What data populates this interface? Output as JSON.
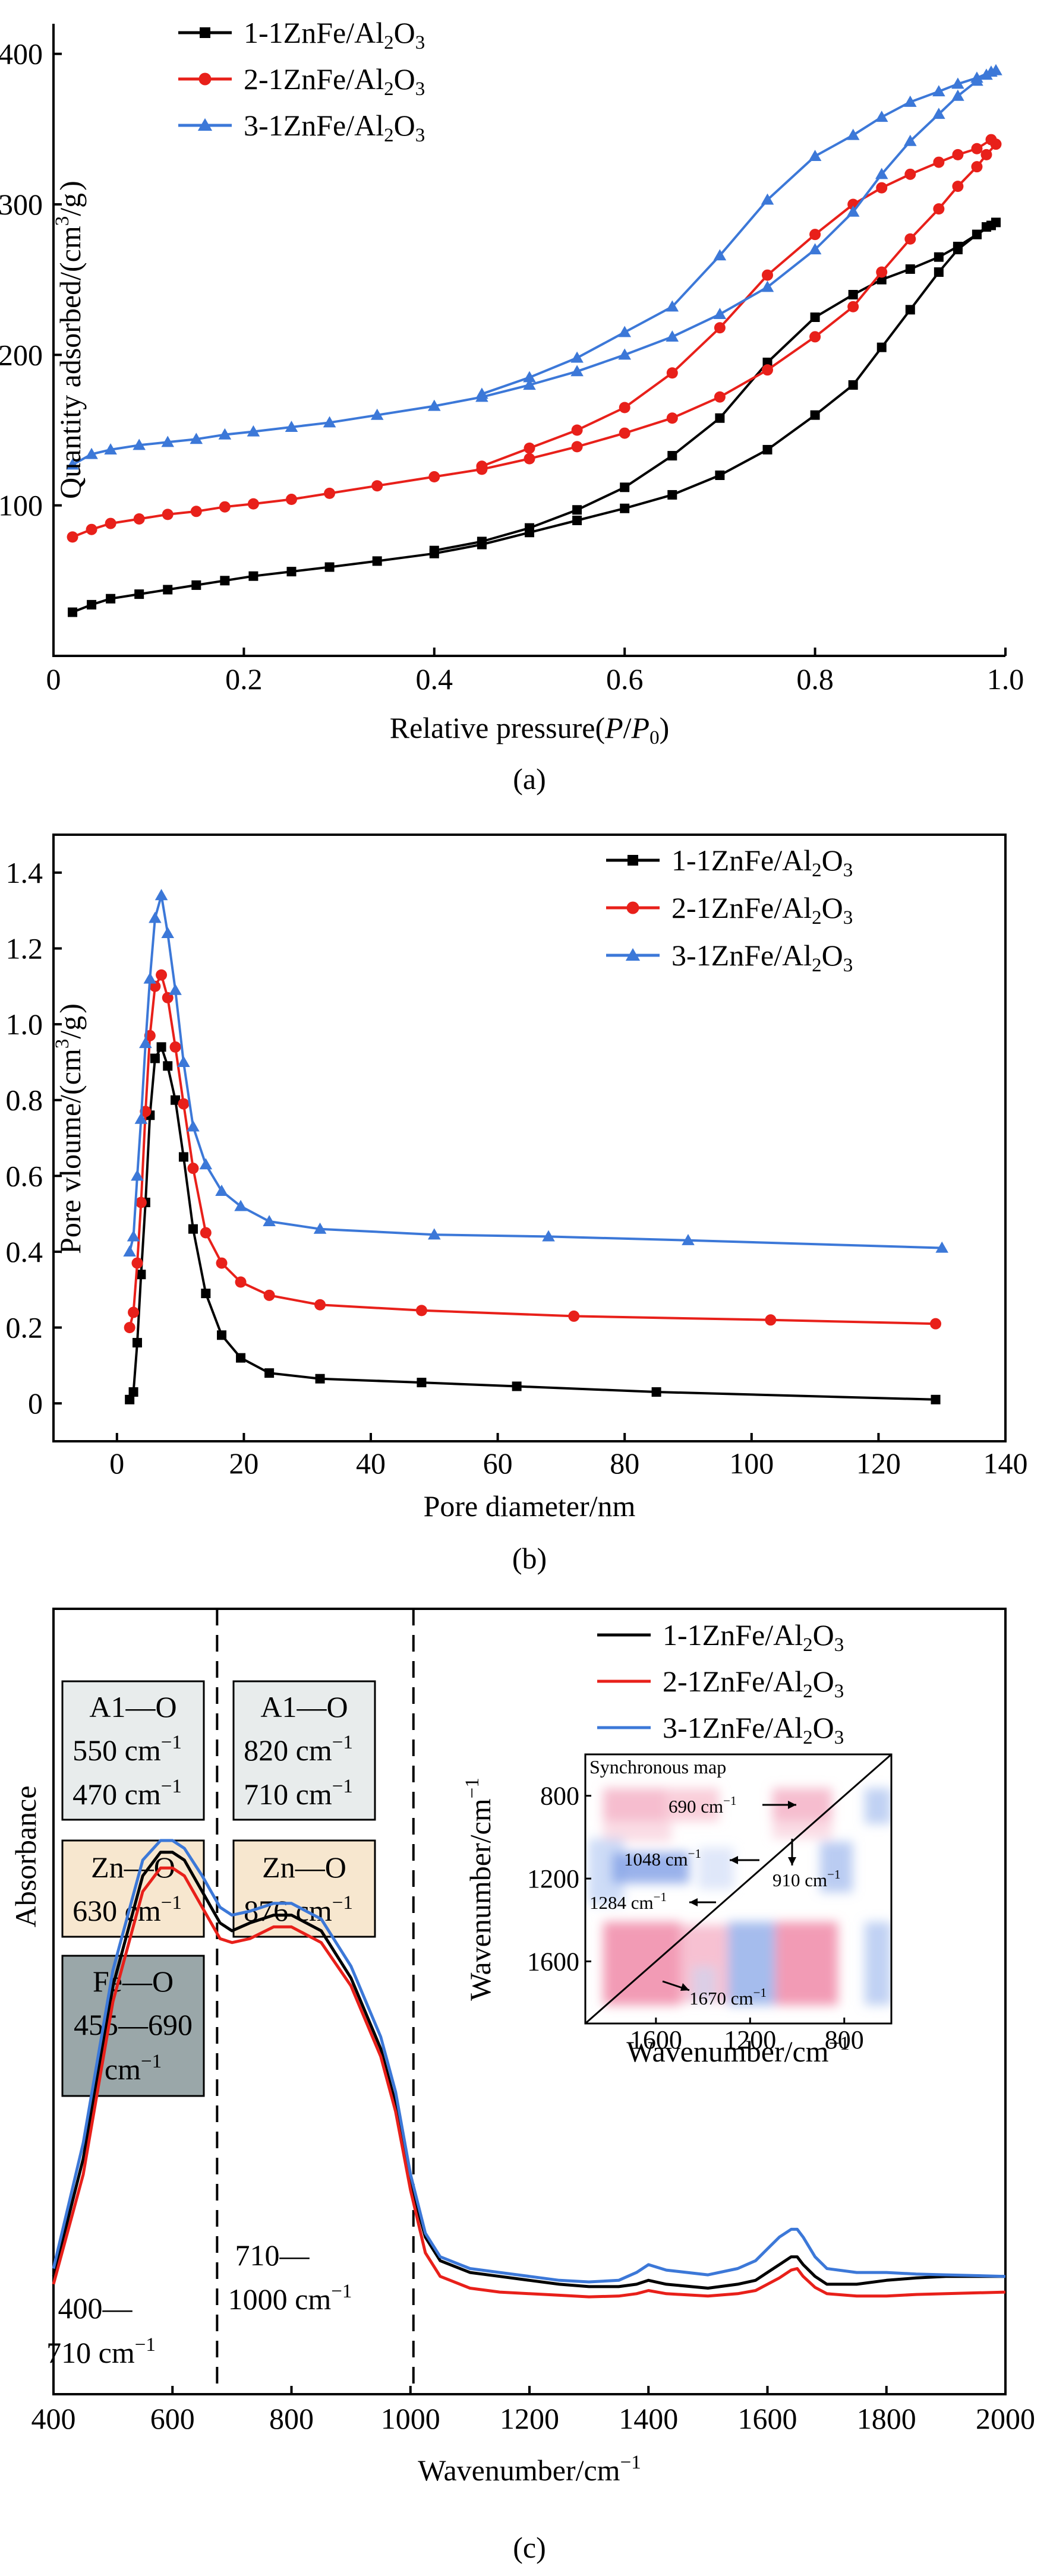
{
  "colors": {
    "s1": "#000000",
    "s2": "#e8201a",
    "s3": "#3c78d8",
    "al_box": "#e8ecec",
    "zn_box": "#f7e7cf",
    "fe_box": "#9aa7a9"
  },
  "chart_data": [
    {
      "type": "line",
      "panel_label": "(a)",
      "xlabel_parts": [
        "Relative pressure(",
        "P",
        "/",
        "P",
        "0",
        ")"
      ],
      "ylabel_parts": [
        "Quantity adsorbed/(cm",
        "3",
        "/g",
        ")"
      ],
      "xlim": [
        0,
        1.0
      ],
      "ylim": [
        0,
        420
      ],
      "xticks": [
        0,
        0.2,
        0.4,
        0.6,
        0.8,
        1.0
      ],
      "xtick_labels": [
        "0",
        "0.2",
        "0.4",
        "0.6",
        "0.8",
        "1.0"
      ],
      "yticks": [
        100,
        200,
        300,
        400
      ],
      "ytick_labels": [
        "100",
        "200",
        "300",
        "400"
      ],
      "legend_position": "top-left",
      "series": [
        {
          "name": "1-1ZnFe/Al2O3",
          "legend_parts": [
            "1-1ZnFe/Al",
            "2",
            "O",
            "3"
          ],
          "marker": "square",
          "color_key": "s1",
          "x": [
            0.02,
            0.04,
            0.06,
            0.09,
            0.12,
            0.15,
            0.18,
            0.21,
            0.25,
            0.29,
            0.34,
            0.4,
            0.45,
            0.5,
            0.55,
            0.6,
            0.65,
            0.7,
            0.75,
            0.8,
            0.84,
            0.87,
            0.9,
            0.93,
            0.95,
            0.97,
            0.98,
            0.99,
            0.985,
            0.97,
            0.95,
            0.93,
            0.9,
            0.87,
            0.84,
            0.8,
            0.75,
            0.7,
            0.65,
            0.6,
            0.55,
            0.5,
            0.45,
            0.4
          ],
          "y": [
            29,
            34,
            38,
            41,
            44,
            47,
            50,
            53,
            56,
            59,
            63,
            68,
            74,
            82,
            90,
            98,
            107,
            120,
            137,
            160,
            180,
            205,
            230,
            255,
            270,
            280,
            285,
            288,
            286,
            280,
            272,
            265,
            257,
            250,
            240,
            225,
            195,
            158,
            133,
            112,
            97,
            85,
            76,
            70
          ]
        },
        {
          "name": "2-1ZnFe/Al2O3",
          "legend_parts": [
            "2-1ZnFe/Al",
            "2",
            "O",
            "3"
          ],
          "marker": "circle",
          "color_key": "s2",
          "x": [
            0.02,
            0.04,
            0.06,
            0.09,
            0.12,
            0.15,
            0.18,
            0.21,
            0.25,
            0.29,
            0.34,
            0.4,
            0.45,
            0.5,
            0.55,
            0.6,
            0.65,
            0.7,
            0.75,
            0.8,
            0.84,
            0.87,
            0.9,
            0.93,
            0.95,
            0.97,
            0.98,
            0.99,
            0.985,
            0.97,
            0.95,
            0.93,
            0.9,
            0.87,
            0.84,
            0.8,
            0.75,
            0.7,
            0.65,
            0.6,
            0.55,
            0.5,
            0.45
          ],
          "y": [
            79,
            84,
            88,
            91,
            94,
            96,
            99,
            101,
            104,
            108,
            113,
            119,
            124,
            131,
            139,
            148,
            158,
            172,
            190,
            212,
            232,
            255,
            277,
            297,
            312,
            325,
            333,
            340,
            343,
            337,
            333,
            328,
            320,
            311,
            300,
            280,
            253,
            218,
            188,
            165,
            150,
            138,
            126
          ]
        },
        {
          "name": "3-1ZnFe/Al2O3",
          "legend_parts": [
            "3-1ZnFe/Al",
            "2",
            "O",
            "3"
          ],
          "marker": "triangle",
          "color_key": "s3",
          "x": [
            0.02,
            0.04,
            0.06,
            0.09,
            0.12,
            0.15,
            0.18,
            0.21,
            0.25,
            0.29,
            0.34,
            0.4,
            0.45,
            0.5,
            0.55,
            0.6,
            0.65,
            0.7,
            0.75,
            0.8,
            0.84,
            0.87,
            0.9,
            0.93,
            0.95,
            0.97,
            0.98,
            0.99,
            0.985,
            0.97,
            0.95,
            0.93,
            0.9,
            0.87,
            0.84,
            0.8,
            0.75,
            0.7,
            0.65,
            0.6,
            0.55,
            0.5,
            0.45
          ],
          "y": [
            127,
            134,
            137,
            140,
            142,
            144,
            147,
            149,
            152,
            155,
            160,
            166,
            172,
            180,
            189,
            200,
            212,
            227,
            245,
            270,
            295,
            320,
            342,
            360,
            372,
            382,
            386,
            389,
            388,
            384,
            380,
            375,
            368,
            358,
            346,
            332,
            303,
            266,
            232,
            215,
            198,
            185,
            174
          ]
        }
      ]
    },
    {
      "type": "line",
      "panel_label": "(b)",
      "xlabel": "Pore diameter/nm",
      "ylabel_parts": [
        "Pore vloume/(cm",
        "3",
        "/g",
        ")"
      ],
      "xlim": [
        -10,
        140
      ],
      "ylim": [
        -0.1,
        1.5
      ],
      "xticks": [
        0,
        20,
        40,
        60,
        80,
        100,
        120,
        140
      ],
      "xtick_labels": [
        "0",
        "20",
        "40",
        "60",
        "80",
        "100",
        "120",
        "140"
      ],
      "yticks": [
        0,
        0.2,
        0.4,
        0.6,
        0.8,
        1.0,
        1.2,
        1.4
      ],
      "ytick_labels": [
        "0",
        "0.2",
        "0.4",
        "0.6",
        "0.8",
        "1.0",
        "1.2",
        "1.4"
      ],
      "legend_position": "top-right",
      "series": [
        {
          "name": "1-1ZnFe/Al2O3",
          "legend_parts": [
            "1-1ZnFe/Al",
            "2",
            "O",
            "3"
          ],
          "marker": "square",
          "color_key": "s1",
          "x": [
            2,
            2.6,
            3.2,
            3.8,
            4.5,
            5.2,
            6,
            7,
            8,
            9.2,
            10.5,
            12,
            14,
            16.5,
            19.5,
            24,
            32,
            48,
            63,
            85,
            129
          ],
          "y": [
            0.01,
            0.03,
            0.16,
            0.34,
            0.53,
            0.76,
            0.91,
            0.94,
            0.89,
            0.8,
            0.65,
            0.46,
            0.29,
            0.18,
            0.12,
            0.08,
            0.065,
            0.055,
            0.045,
            0.03,
            0.01
          ]
        },
        {
          "name": "2-1ZnFe/Al2O3",
          "legend_parts": [
            "2-1ZnFe/Al",
            "2",
            "O",
            "3"
          ],
          "marker": "circle",
          "color_key": "s2",
          "x": [
            2,
            2.6,
            3.2,
            3.8,
            4.5,
            5.2,
            6,
            7,
            8,
            9.2,
            10.5,
            12,
            14,
            16.5,
            19.5,
            24,
            32,
            48,
            72,
            103,
            129
          ],
          "y": [
            0.2,
            0.24,
            0.37,
            0.53,
            0.77,
            0.97,
            1.1,
            1.13,
            1.07,
            0.94,
            0.79,
            0.62,
            0.45,
            0.37,
            0.32,
            0.285,
            0.26,
            0.245,
            0.23,
            0.22,
            0.21
          ]
        },
        {
          "name": "3-1ZnFe/Al2O3",
          "legend_parts": [
            "3-1ZnFe/Al",
            "2",
            "O",
            "3"
          ],
          "marker": "triangle",
          "color_key": "s3",
          "x": [
            2,
            2.6,
            3.2,
            3.8,
            4.5,
            5.2,
            6,
            7,
            8,
            9.2,
            10.5,
            12,
            14,
            16.5,
            19.5,
            24,
            32,
            50,
            68,
            90,
            130
          ],
          "y": [
            0.4,
            0.44,
            0.6,
            0.75,
            0.95,
            1.12,
            1.28,
            1.34,
            1.24,
            1.09,
            0.9,
            0.73,
            0.63,
            0.56,
            0.52,
            0.48,
            0.46,
            0.445,
            0.44,
            0.43,
            0.41
          ]
        }
      ]
    },
    {
      "type": "line",
      "panel_label": "(c)",
      "xlabel_parts": [
        "Wavenumber/cm",
        "−1"
      ],
      "ylabel": "Absorbance",
      "xlim": [
        400,
        2000
      ],
      "ylim": [
        0,
        1
      ],
      "xticks": [
        400,
        600,
        800,
        1000,
        1200,
        1400,
        1600,
        1800,
        2000
      ],
      "xtick_labels": [
        "400",
        "600",
        "800",
        "1000",
        "1200",
        "1400",
        "1600",
        "1800",
        "2000"
      ],
      "region_dividers": [
        675,
        1005
      ],
      "legend_position": "top-right",
      "series": [
        {
          "name": "1-1ZnFe/Al2O3",
          "legend_parts": [
            "1-1ZnFe/Al",
            "2",
            "O",
            "3"
          ],
          "color_key": "s1",
          "x": [
            400,
            450,
            500,
            550,
            580,
            600,
            620,
            650,
            680,
            700,
            730,
            770,
            800,
            850,
            900,
            950,
            975,
            1000,
            1025,
            1050,
            1100,
            1150,
            1200,
            1250,
            1300,
            1350,
            1380,
            1400,
            1430,
            1500,
            1550,
            1580,
            1600,
            1620,
            1640,
            1650,
            1660,
            1680,
            1700,
            1750,
            1800,
            1850,
            1900,
            2000
          ],
          "y": [
            0.15,
            0.3,
            0.52,
            0.66,
            0.69,
            0.69,
            0.68,
            0.64,
            0.6,
            0.59,
            0.6,
            0.61,
            0.61,
            0.59,
            0.53,
            0.44,
            0.37,
            0.27,
            0.2,
            0.17,
            0.155,
            0.15,
            0.145,
            0.14,
            0.137,
            0.137,
            0.14,
            0.145,
            0.14,
            0.135,
            0.14,
            0.145,
            0.155,
            0.165,
            0.175,
            0.175,
            0.165,
            0.15,
            0.14,
            0.14,
            0.145,
            0.148,
            0.15,
            0.15
          ]
        },
        {
          "name": "2-1ZnFe/Al2O3",
          "legend_parts": [
            "2-1ZnFe/Al",
            "2",
            "O",
            "3"
          ],
          "color_key": "s2",
          "x": [
            400,
            450,
            500,
            550,
            580,
            600,
            620,
            650,
            680,
            700,
            730,
            770,
            800,
            850,
            900,
            950,
            975,
            1000,
            1025,
            1050,
            1100,
            1150,
            1200,
            1250,
            1300,
            1350,
            1380,
            1400,
            1430,
            1500,
            1550,
            1580,
            1600,
            1620,
            1640,
            1650,
            1660,
            1680,
            1700,
            1750,
            1800,
            1850,
            1900,
            2000
          ],
          "y": [
            0.14,
            0.28,
            0.5,
            0.64,
            0.67,
            0.67,
            0.66,
            0.62,
            0.58,
            0.575,
            0.58,
            0.595,
            0.595,
            0.575,
            0.52,
            0.43,
            0.36,
            0.26,
            0.18,
            0.15,
            0.135,
            0.13,
            0.128,
            0.126,
            0.124,
            0.125,
            0.128,
            0.132,
            0.128,
            0.125,
            0.128,
            0.132,
            0.14,
            0.148,
            0.158,
            0.16,
            0.15,
            0.136,
            0.128,
            0.125,
            0.125,
            0.127,
            0.128,
            0.13
          ]
        },
        {
          "name": "3-1ZnFe/Al2O3",
          "legend_parts": [
            "3-1ZnFe/Al",
            "2",
            "O",
            "3"
          ],
          "color_key": "s3",
          "x": [
            400,
            450,
            500,
            550,
            580,
            600,
            620,
            650,
            680,
            700,
            730,
            770,
            800,
            850,
            900,
            950,
            975,
            1000,
            1025,
            1050,
            1100,
            1150,
            1200,
            1250,
            1300,
            1350,
            1380,
            1400,
            1430,
            1500,
            1550,
            1580,
            1600,
            1620,
            1640,
            1650,
            1660,
            1680,
            1700,
            1750,
            1800,
            1850,
            1900,
            2000
          ],
          "y": [
            0.16,
            0.32,
            0.54,
            0.68,
            0.705,
            0.705,
            0.695,
            0.66,
            0.62,
            0.61,
            0.615,
            0.625,
            0.625,
            0.605,
            0.545,
            0.455,
            0.385,
            0.28,
            0.205,
            0.175,
            0.16,
            0.155,
            0.15,
            0.145,
            0.143,
            0.145,
            0.155,
            0.165,
            0.158,
            0.152,
            0.16,
            0.17,
            0.185,
            0.2,
            0.21,
            0.21,
            0.2,
            0.175,
            0.16,
            0.155,
            0.155,
            0.153,
            0.152,
            0.15
          ]
        }
      ]
    }
  ],
  "panel_c": {
    "al_box_1": {
      "title": "A1—O",
      "line1": "550 cm",
      "line2": "470 cm",
      "sup": "−1"
    },
    "al_box_2": {
      "title": "A1—O",
      "line1": "820 cm",
      "line2": "710 cm",
      "sup": "−1"
    },
    "zn_box_1": {
      "title": "Zn—O",
      "line1": "630 cm",
      "sup": "−1"
    },
    "zn_box_2": {
      "title": "Zn—O",
      "line1": "876 cm",
      "sup": "−1"
    },
    "fe_box": {
      "title": "Fe—O",
      "line1": "455—690",
      "line2": "cm",
      "sup": "−1"
    },
    "region1": {
      "line1": "400—",
      "line2": "710 cm",
      "sup": "−1"
    },
    "region2": {
      "line1": "710—",
      "line2": "1000 cm",
      "sup": "−1"
    },
    "inset": {
      "title": "Synchronous map",
      "xlabel": "Wavenumber/cm",
      "ylabel": "Wavenumber/cm",
      "sup": "−1",
      "xticks": [
        1600,
        1200,
        800
      ],
      "yticks": [
        800,
        1200,
        1600
      ],
      "xtick_labels": [
        "1600",
        "1200",
        "800"
      ],
      "ytick_labels": [
        "800",
        "1200",
        "1600"
      ],
      "annotations": [
        {
          "text": "690 cm",
          "sup": "−1"
        },
        {
          "text": "1048 cm",
          "sup": "−1"
        },
        {
          "text": "910 cm",
          "sup": "−1"
        },
        {
          "text": "1284 cm",
          "sup": "−1"
        },
        {
          "text": "1670 cm",
          "sup": "−1"
        }
      ]
    }
  }
}
